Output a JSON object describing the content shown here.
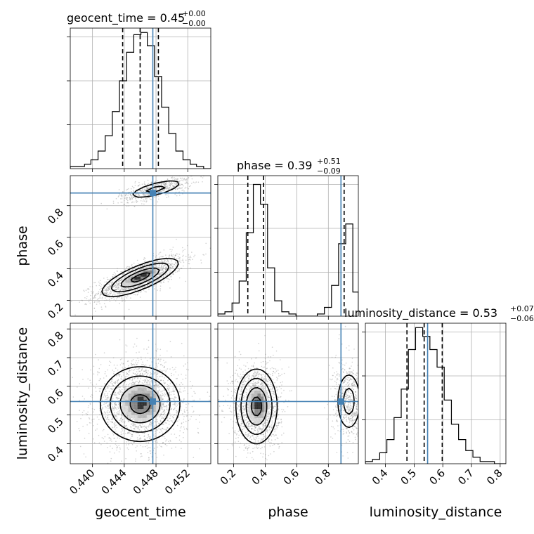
{
  "chart_data": {
    "type": "corner",
    "truth_color": "#4682b4",
    "parameters": [
      {
        "name": "geocent_time",
        "title": "geocent_time = 0.45",
        "title_value": "0.45",
        "title_plus": "+0.00",
        "title_minus": "−0.00",
        "range": [
          0.4372,
          0.4549
        ],
        "ticks": [
          0.44,
          0.444,
          0.448,
          0.452
        ],
        "tick_labels": [
          "0.440",
          "0.444",
          "0.448",
          "0.452"
        ],
        "quantiles": [
          0.4438,
          0.446,
          0.4483
        ],
        "truth": 0.4476,
        "hist": [
          {
            "x0": 0.4372,
            "x1": 0.4381,
            "c": 1
          },
          {
            "x0": 0.4381,
            "x1": 0.439,
            "c": 1
          },
          {
            "x0": 0.439,
            "x1": 0.4398,
            "c": 2
          },
          {
            "x0": 0.4398,
            "x1": 0.4407,
            "c": 4
          },
          {
            "x0": 0.4407,
            "x1": 0.4416,
            "c": 8
          },
          {
            "x0": 0.4416,
            "x1": 0.4425,
            "c": 15
          },
          {
            "x0": 0.4425,
            "x1": 0.4434,
            "c": 26
          },
          {
            "x0": 0.4434,
            "x1": 0.4443,
            "c": 40
          },
          {
            "x0": 0.4443,
            "x1": 0.4452,
            "c": 53
          },
          {
            "x0": 0.4452,
            "x1": 0.4461,
            "c": 61
          },
          {
            "x0": 0.4461,
            "x1": 0.4469,
            "c": 62
          },
          {
            "x0": 0.4469,
            "x1": 0.4478,
            "c": 56
          },
          {
            "x0": 0.4478,
            "x1": 0.4487,
            "c": 42
          },
          {
            "x0": 0.4487,
            "x1": 0.4496,
            "c": 28
          },
          {
            "x0": 0.4496,
            "x1": 0.4505,
            "c": 16
          },
          {
            "x0": 0.4505,
            "x1": 0.4514,
            "c": 8
          },
          {
            "x0": 0.4514,
            "x1": 0.4523,
            "c": 4
          },
          {
            "x0": 0.4523,
            "x1": 0.4531,
            "c": 2
          },
          {
            "x0": 0.4531,
            "x1": 0.454,
            "c": 1
          },
          {
            "x0": 0.454,
            "x1": 0.4549,
            "c": 0
          }
        ],
        "hist_ymax": 64
      },
      {
        "name": "phase",
        "title": "phase = 0.39",
        "title_value": "0.39",
        "title_plus": "+0.51",
        "title_minus": "−0.09",
        "range": [
          0.1,
          0.99
        ],
        "ticks": [
          0.2,
          0.4,
          0.6,
          0.8
        ],
        "tick_labels": [
          "0.2",
          "0.4",
          "0.6",
          "0.8"
        ],
        "quantiles": [
          0.29,
          0.39,
          0.9
        ],
        "truth": 0.88,
        "hist": [
          {
            "x0": 0.1,
            "x1": 0.145,
            "c": 1
          },
          {
            "x0": 0.145,
            "x1": 0.19,
            "c": 2
          },
          {
            "x0": 0.19,
            "x1": 0.235,
            "c": 6
          },
          {
            "x0": 0.235,
            "x1": 0.28,
            "c": 16
          },
          {
            "x0": 0.28,
            "x1": 0.325,
            "c": 38
          },
          {
            "x0": 0.325,
            "x1": 0.37,
            "c": 60
          },
          {
            "x0": 0.37,
            "x1": 0.415,
            "c": 51
          },
          {
            "x0": 0.415,
            "x1": 0.46,
            "c": 22
          },
          {
            "x0": 0.46,
            "x1": 0.505,
            "c": 7
          },
          {
            "x0": 0.505,
            "x1": 0.55,
            "c": 2
          },
          {
            "x0": 0.55,
            "x1": 0.595,
            "c": 1
          },
          {
            "x0": 0.595,
            "x1": 0.64,
            "c": 0
          },
          {
            "x0": 0.64,
            "x1": 0.685,
            "c": 0
          },
          {
            "x0": 0.685,
            "x1": 0.73,
            "c": 0
          },
          {
            "x0": 0.73,
            "x1": 0.775,
            "c": 1
          },
          {
            "x0": 0.775,
            "x1": 0.82,
            "c": 4
          },
          {
            "x0": 0.82,
            "x1": 0.865,
            "c": 14
          },
          {
            "x0": 0.865,
            "x1": 0.91,
            "c": 33
          },
          {
            "x0": 0.91,
            "x1": 0.955,
            "c": 42
          },
          {
            "x0": 0.955,
            "x1": 0.99,
            "c": 11
          }
        ],
        "hist_ymax": 64
      },
      {
        "name": "luminosity_distance",
        "title": "luminosity_distance = 0.53",
        "title_value": "0.53",
        "title_plus": "+0.07",
        "title_minus": "−0.06",
        "range": [
          0.33,
          0.82
        ],
        "ticks": [
          0.4,
          0.5,
          0.6,
          0.7,
          0.8
        ],
        "tick_labels": [
          "0.4",
          "0.5",
          "0.6",
          "0.7",
          "0.8"
        ],
        "quantiles": [
          0.475,
          0.535,
          0.598
        ],
        "truth": 0.547,
        "hist": [
          {
            "x0": 0.33,
            "x1": 0.355,
            "c": 1
          },
          {
            "x0": 0.355,
            "x1": 0.38,
            "c": 2
          },
          {
            "x0": 0.38,
            "x1": 0.405,
            "c": 5
          },
          {
            "x0": 0.405,
            "x1": 0.43,
            "c": 11
          },
          {
            "x0": 0.43,
            "x1": 0.455,
            "c": 21
          },
          {
            "x0": 0.455,
            "x1": 0.48,
            "c": 34
          },
          {
            "x0": 0.48,
            "x1": 0.505,
            "c": 52
          },
          {
            "x0": 0.505,
            "x1": 0.53,
            "c": 62
          },
          {
            "x0": 0.53,
            "x1": 0.555,
            "c": 58
          },
          {
            "x0": 0.555,
            "x1": 0.58,
            "c": 52
          },
          {
            "x0": 0.58,
            "x1": 0.605,
            "c": 44
          },
          {
            "x0": 0.605,
            "x1": 0.63,
            "c": 29
          },
          {
            "x0": 0.63,
            "x1": 0.655,
            "c": 18
          },
          {
            "x0": 0.655,
            "x1": 0.68,
            "c": 11
          },
          {
            "x0": 0.68,
            "x1": 0.705,
            "c": 6
          },
          {
            "x0": 0.705,
            "x1": 0.73,
            "c": 3
          },
          {
            "x0": 0.73,
            "x1": 0.755,
            "c": 1
          },
          {
            "x0": 0.755,
            "x1": 0.78,
            "c": 1
          },
          {
            "x0": 0.78,
            "x1": 0.805,
            "c": 0
          },
          {
            "x0": 0.805,
            "x1": 0.82,
            "c": 0
          }
        ],
        "hist_ymax": 64
      }
    ],
    "pairs": [
      {
        "x": "geocent_time",
        "y": "phase",
        "modes": [
          {
            "cx": 0.446,
            "cy": 0.345,
            "sx": 0.0024,
            "sy": 0.06,
            "rho": 0.75,
            "weight": 0.72
          },
          {
            "cx": 0.448,
            "cy": 0.905,
            "sx": 0.002,
            "sy": 0.035,
            "rho": 0.7,
            "weight": 0.28
          }
        ]
      },
      {
        "x": "geocent_time",
        "y": "luminosity_distance",
        "modes": [
          {
            "cx": 0.446,
            "cy": 0.538,
            "sx": 0.0025,
            "sy": 0.065,
            "rho": 0.0,
            "weight": 1.0
          }
        ]
      },
      {
        "x": "phase",
        "y": "luminosity_distance",
        "modes": [
          {
            "cx": 0.345,
            "cy": 0.53,
            "sx": 0.065,
            "sy": 0.065,
            "rho": 0.0,
            "weight": 0.7
          },
          {
            "cx": 0.93,
            "cy": 0.548,
            "sx": 0.045,
            "sy": 0.06,
            "rho": 0.0,
            "weight": 0.3
          }
        ]
      }
    ],
    "grid": true,
    "contour_levels": [
      0.5,
      1.0,
      1.5,
      2.0
    ]
  }
}
